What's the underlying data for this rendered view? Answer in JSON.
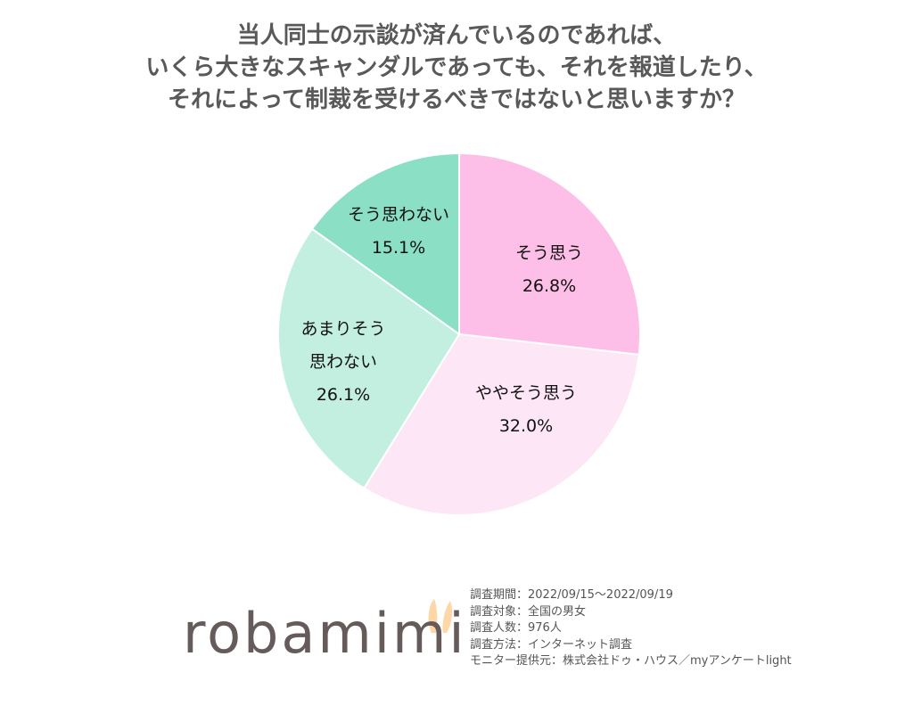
{
  "chart_data": {
    "type": "pie",
    "title": [
      "当人同士の示談が済んでいるのであれば、",
      "いくら大きなスキャンダルであっても、それを報道したり、",
      "それによって制裁を受けるべきではないと思いますか？"
    ],
    "start": "top",
    "direction": "clockwise",
    "slices": [
      {
        "label": [
          "そう思う"
        ],
        "value": 26.8,
        "value_label": "26.8%",
        "color": "#FDBFE7"
      },
      {
        "label": [
          "ややそう思う"
        ],
        "value": 32.0,
        "value_label": "32.0%",
        "color": "#FDE6F5"
      },
      {
        "label": [
          "あまりそう",
          "思わない"
        ],
        "value": 26.1,
        "value_label": "26.1%",
        "color": "#C3EFE0"
      },
      {
        "label": [
          "そう思わない"
        ],
        "value": 15.1,
        "value_label": "15.1%",
        "color": "#8ADFC4"
      }
    ]
  },
  "logo": {
    "text": "robamimi",
    "ear_color": "#FDD7A5"
  },
  "notes": [
    "調査期間：2022/09/15～2022/09/19",
    "調査対象：全国の男女",
    "調査人数：976人",
    "調査方法：インターネット調査",
    "モニター提供元：株式会社ドゥ・ハウス／myアンケートlight"
  ]
}
